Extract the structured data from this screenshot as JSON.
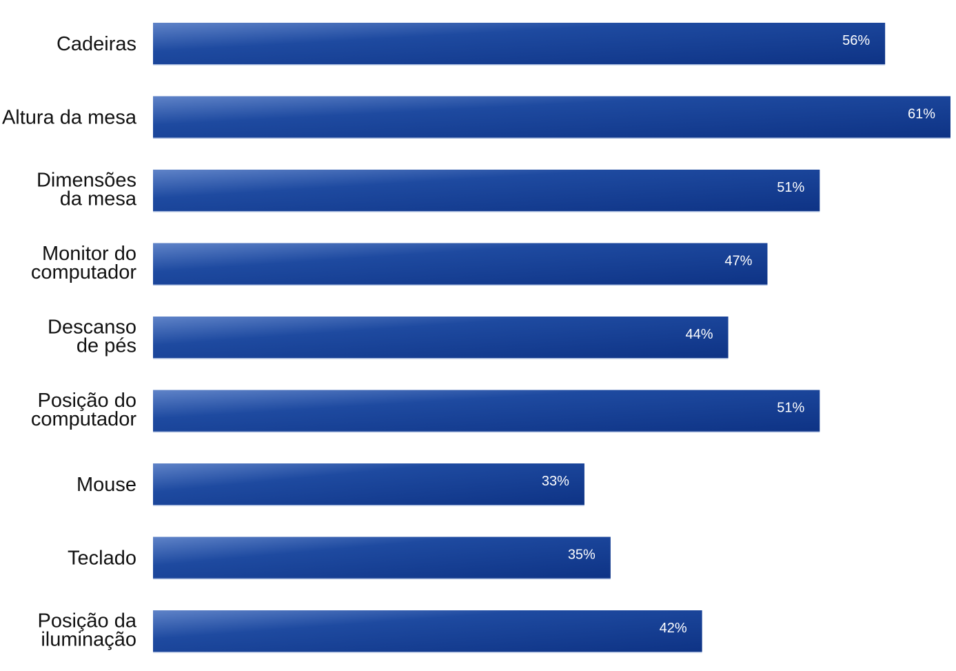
{
  "chart_data": {
    "type": "bar",
    "orientation": "horizontal",
    "categories": [
      "Cadeiras",
      "Altura da mesa",
      "Dimensões da mesa",
      "Monitor do computador",
      "Descanso de pés",
      "Posição do computador",
      "Mouse",
      "Teclado",
      "Posição da iluminação"
    ],
    "category_lines": [
      [
        "Cadeiras"
      ],
      [
        "Altura da mesa"
      ],
      [
        "Dimensões",
        "da mesa"
      ],
      [
        "Monitor do",
        "computador"
      ],
      [
        "Descanso",
        "de pés"
      ],
      [
        "Posição do",
        "computador"
      ],
      [
        "Mouse"
      ],
      [
        "Teclado"
      ],
      [
        "Posição da",
        "iluminação"
      ]
    ],
    "values": [
      56,
      61,
      51,
      47,
      44,
      51,
      33,
      35,
      42
    ],
    "value_labels": [
      "56%",
      "61%",
      "51%",
      "47%",
      "44%",
      "51%",
      "33%",
      "35%",
      "42%"
    ],
    "unit": "%",
    "xlim": [
      0,
      61
    ],
    "grid": false,
    "legend": "none",
    "bar_color": "#1e4aa0",
    "bar_color_light": "#5f83c8",
    "bar_color_dark": "#0e3385"
  }
}
